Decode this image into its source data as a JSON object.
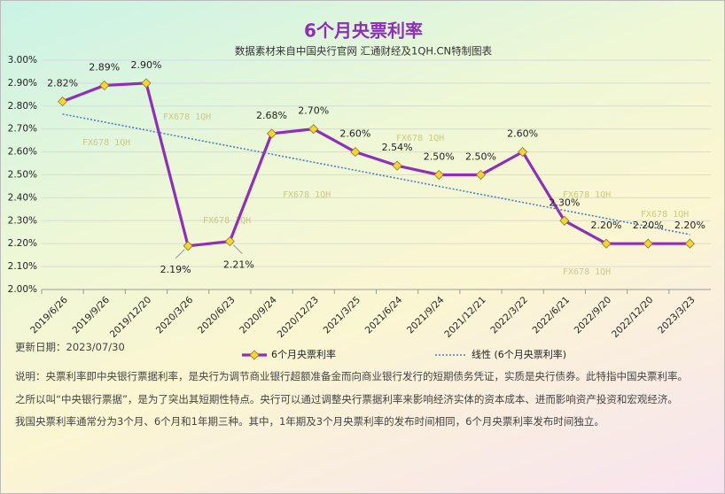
{
  "chart_data": {
    "type": "line",
    "title": "6个月央票利率",
    "subtitle": "数据素材来自中国央行官网 汇通财经及1QH.CN特制图表",
    "categories": [
      "2019/6/26",
      "2019/9/26",
      "2019/12/20",
      "2020/3/26",
      "2020/6/23",
      "2020/9/24",
      "2020/12/23",
      "2021/3/25",
      "2021/6/24",
      "2021/9/24",
      "2021/12/21",
      "2022/3/22",
      "2022/6/21",
      "2022/9/20",
      "2022/12/20",
      "2023/3/23"
    ],
    "series": [
      {
        "name": "6个月央票利率",
        "color": "#8e2fb8",
        "marker_color": "#f5d33b",
        "values": [
          2.82,
          2.89,
          2.9,
          2.19,
          2.21,
          2.68,
          2.7,
          2.6,
          2.54,
          2.5,
          2.5,
          2.6,
          2.3,
          2.2,
          2.2,
          2.2
        ],
        "value_labels": [
          "2.82%",
          "2.89%",
          "2.90%",
          "2.19%",
          "2.21%",
          "2.68%",
          "2.70%",
          "2.60%",
          "2.54%",
          "2.50%",
          "2.50%",
          "2.60%",
          "2.30%",
          "2.20%",
          "2.20%",
          "2.20%"
        ]
      },
      {
        "name": "线性 (6个月央票利率)",
        "color": "#4a7fc0",
        "dotted": true,
        "values": [
          2.765,
          2.73,
          2.695,
          2.66,
          2.625,
          2.59,
          2.555,
          2.52,
          2.485,
          2.45,
          2.415,
          2.38,
          2.345,
          2.31,
          2.275,
          2.24
        ]
      }
    ],
    "ylim": [
      2.0,
      3.0
    ],
    "yticks": [
      {
        "value": 2.0,
        "label": "2.00%"
      },
      {
        "value": 2.1,
        "label": "2.10%"
      },
      {
        "value": 2.2,
        "label": "2.20%"
      },
      {
        "value": 2.3,
        "label": "2.30%"
      },
      {
        "value": 2.4,
        "label": "2.40%"
      },
      {
        "value": 2.5,
        "label": "2.50%"
      },
      {
        "value": 2.6,
        "label": "2.60%"
      },
      {
        "value": 2.7,
        "label": "2.70%"
      },
      {
        "value": 2.8,
        "label": "2.80%"
      },
      {
        "value": 2.9,
        "label": "2.90%"
      },
      {
        "value": 3.0,
        "label": "3.00%"
      }
    ],
    "grid": true,
    "watermark": "FX678  1QH"
  },
  "footer": {
    "update": "更新日期：2023/07/30",
    "notes": [
      "说明：央票利率即中央银行票据利率，是央行为调节商业银行超额准备金而向商业银行发行的短期债务凭证，实质是央行债券。此特指中国央票利率。",
      "之所以叫“中央银行票据”，是为了突出其短期性特点。央行可以通过调整央行票据利率来影响经济实体的资本成本、进而影响资产投资和宏观经济。",
      "我国央票利率通常分为3个月、6个月和1年期三种。其中，1年期及3个月央票利率的发布时间相同，6个月央票利率发布时间独立。"
    ]
  }
}
